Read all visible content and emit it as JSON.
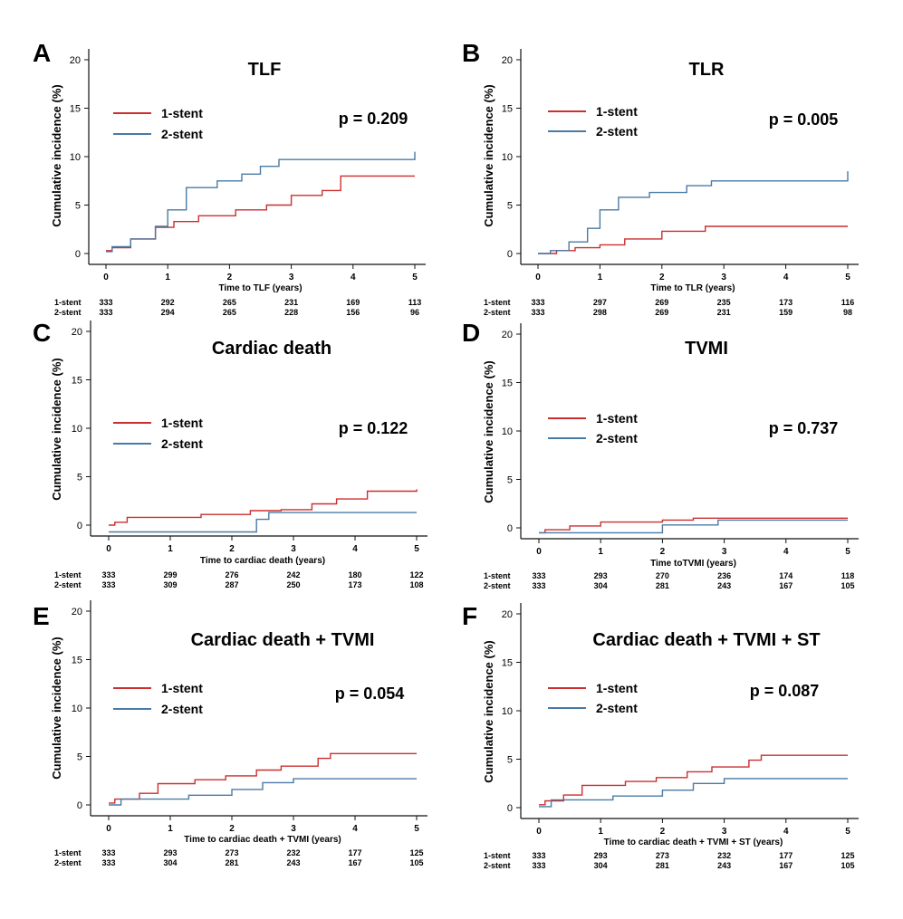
{
  "colors": {
    "one_stent": "#cc2f2f",
    "two_stent": "#4a7aa6",
    "axis": "#111111"
  },
  "chart_data": [
    {
      "type": "line",
      "panel": "A",
      "title": "TLF",
      "p_value": "p = 0.209",
      "xlabel": "Time to TLF (years)",
      "ylabel": "Cumulative incidence (%)",
      "xlim": [
        0,
        5
      ],
      "ylim": [
        0,
        20
      ],
      "xticks": [
        0,
        1,
        2,
        3,
        4,
        5
      ],
      "yticks": [
        0,
        5,
        10,
        15,
        20
      ],
      "legend": [
        "1-stent",
        "2-stent"
      ],
      "series": [
        {
          "name": "1-stent",
          "x": [
            0,
            0.1,
            0.4,
            0.8,
            1.1,
            1.5,
            2.1,
            2.6,
            3.0,
            3.5,
            3.8,
            5.0
          ],
          "y": [
            0.3,
            0.6,
            1.5,
            2.7,
            3.3,
            3.9,
            4.5,
            5.0,
            6.0,
            6.5,
            8.0,
            8.0
          ]
        },
        {
          "name": "2-stent",
          "x": [
            0,
            0.1,
            0.4,
            0.8,
            1.0,
            1.3,
            1.8,
            2.2,
            2.5,
            2.8,
            5.0,
            5.0
          ],
          "y": [
            0.2,
            0.7,
            1.5,
            2.8,
            4.5,
            6.8,
            7.5,
            8.2,
            9.0,
            9.7,
            9.7,
            10.5
          ]
        }
      ],
      "at_risk": {
        "1-stent": [
          "333",
          "292",
          "265",
          "231",
          "169",
          "113"
        ],
        "2-stent": [
          "333",
          "294",
          "265",
          "228",
          "156",
          "96"
        ]
      }
    },
    {
      "type": "line",
      "panel": "B",
      "title": "TLR",
      "p_value": "p = 0.005",
      "xlabel": "Time to TLR (years)",
      "ylabel": "Cumulative incidence (%)",
      "xlim": [
        0,
        5
      ],
      "ylim": [
        0,
        20
      ],
      "xticks": [
        0,
        1,
        2,
        3,
        4,
        5
      ],
      "yticks": [
        0,
        5,
        10,
        15,
        20
      ],
      "legend": [
        "1-stent",
        "2-stent"
      ],
      "series": [
        {
          "name": "1-stent",
          "x": [
            0,
            0.3,
            0.6,
            1.0,
            1.4,
            2.0,
            2.7,
            5.0
          ],
          "y": [
            0,
            0.3,
            0.6,
            0.9,
            1.5,
            2.3,
            2.8,
            2.8
          ]
        },
        {
          "name": "2-stent",
          "x": [
            0,
            0.2,
            0.5,
            0.8,
            1.0,
            1.3,
            1.8,
            2.4,
            2.8,
            5.0,
            5.0
          ],
          "y": [
            0,
            0.3,
            1.2,
            2.6,
            4.5,
            5.8,
            6.3,
            7.0,
            7.5,
            7.5,
            8.5
          ]
        }
      ],
      "at_risk": {
        "1-stent": [
          "333",
          "297",
          "269",
          "235",
          "173",
          "116"
        ],
        "2-stent": [
          "333",
          "298",
          "269",
          "231",
          "159",
          "98"
        ]
      }
    },
    {
      "type": "line",
      "panel": "C",
      "title": "Cardiac death",
      "p_value": "p = 0.122",
      "xlabel": "Time to cardiac death (years)",
      "ylabel": "Cumulative incidence (%)",
      "xlim": [
        0,
        5
      ],
      "ylim": [
        0,
        20
      ],
      "xticks": [
        0,
        1,
        2,
        3,
        4,
        5
      ],
      "yticks": [
        0,
        5,
        10,
        15,
        20
      ],
      "legend": [
        "1-stent",
        "2-stent"
      ],
      "series": [
        {
          "name": "1-stent",
          "x": [
            0,
            0.1,
            0.3,
            1.0,
            1.5,
            2.3,
            2.8,
            3.3,
            3.7,
            4.2,
            5.0
          ],
          "y": [
            0,
            0.3,
            0.8,
            0.8,
            1.1,
            1.5,
            1.6,
            2.2,
            2.7,
            3.5,
            3.7
          ]
        },
        {
          "name": "2-stent",
          "x": [
            0,
            1.3,
            2.4,
            2.6,
            5.0
          ],
          "y": [
            -0.7,
            -0.7,
            0.6,
            1.3,
            1.3
          ]
        }
      ],
      "at_risk": {
        "1-stent": [
          "333",
          "299",
          "276",
          "242",
          "180",
          "122"
        ],
        "2-stent": [
          "333",
          "309",
          "287",
          "250",
          "173",
          "108"
        ]
      }
    },
    {
      "type": "line",
      "panel": "D",
      "title": "TVMI",
      "p_value": "p = 0.737",
      "xlabel": "Time toTVMI (years)",
      "ylabel": "Cumulative incidence (%)",
      "xlim": [
        0,
        5
      ],
      "ylim": [
        0,
        20
      ],
      "xticks": [
        0,
        1,
        2,
        3,
        4,
        5
      ],
      "yticks": [
        0,
        5,
        10,
        15,
        20
      ],
      "legend": [
        "1-stent",
        "2-stent"
      ],
      "series": [
        {
          "name": "1-stent",
          "x": [
            0,
            0.1,
            0.5,
            1.0,
            2.0,
            2.5,
            5.0
          ],
          "y": [
            -0.5,
            -0.2,
            0.2,
            0.6,
            0.8,
            1.0,
            1.0
          ]
        },
        {
          "name": "2-stent",
          "x": [
            0,
            1.5,
            2.0,
            2.9,
            5.0
          ],
          "y": [
            -0.5,
            -0.5,
            0.3,
            0.8,
            0.8
          ]
        }
      ],
      "at_risk": {
        "1-stent": [
          "333",
          "293",
          "270",
          "236",
          "174",
          "118"
        ],
        "2-stent": [
          "333",
          "304",
          "281",
          "243",
          "167",
          "105"
        ]
      }
    },
    {
      "type": "line",
      "panel": "E",
      "title": "Cardiac death + TVMI",
      "p_value": "p = 0.054",
      "xlabel": "Time to cardiac death + TVMI (years)",
      "ylabel": "Cumulative incidence (%)",
      "xlim": [
        0,
        5
      ],
      "ylim": [
        0,
        20
      ],
      "xticks": [
        0,
        1,
        2,
        3,
        4,
        5
      ],
      "yticks": [
        0,
        5,
        10,
        15,
        20
      ],
      "legend": [
        "1-stent",
        "2-stent"
      ],
      "series": [
        {
          "name": "1-stent",
          "x": [
            0,
            0.1,
            0.5,
            0.8,
            1.4,
            1.9,
            2.4,
            2.8,
            3.4,
            3.6,
            5.0
          ],
          "y": [
            0.2,
            0.6,
            1.2,
            2.2,
            2.6,
            3.0,
            3.6,
            4.0,
            4.8,
            5.3,
            5.3
          ]
        },
        {
          "name": "2-stent",
          "x": [
            0,
            0.2,
            1.3,
            2.0,
            2.5,
            3.0,
            5.0
          ],
          "y": [
            0,
            0.6,
            1.0,
            1.6,
            2.3,
            2.7,
            2.7
          ]
        }
      ],
      "at_risk": {
        "1-stent": [
          "333",
          "293",
          "273",
          "232",
          "177",
          "125"
        ],
        "2-stent": [
          "333",
          "304",
          "281",
          "243",
          "167",
          "105"
        ]
      }
    },
    {
      "type": "line",
      "panel": "F",
      "title": "Cardiac death + TVMI + ST",
      "p_value": "p = 0.087",
      "xlabel": "Time to cardiac death + TVMI + ST (years)",
      "ylabel": "Cumulative incidence (%)",
      "xlim": [
        0,
        5
      ],
      "ylim": [
        0,
        20
      ],
      "xticks": [
        0,
        1,
        2,
        3,
        4,
        5
      ],
      "yticks": [
        0,
        5,
        10,
        15,
        20
      ],
      "legend": [
        "1-stent",
        "2-stent"
      ],
      "series": [
        {
          "name": "1-stent",
          "x": [
            0,
            0.1,
            0.4,
            0.7,
            1.4,
            1.9,
            2.4,
            2.8,
            3.4,
            3.6,
            5.0
          ],
          "y": [
            0.3,
            0.7,
            1.3,
            2.3,
            2.7,
            3.1,
            3.7,
            4.2,
            4.9,
            5.4,
            5.4
          ]
        },
        {
          "name": "2-stent",
          "x": [
            0,
            0.2,
            1.2,
            2.0,
            2.5,
            3.0,
            5.0
          ],
          "y": [
            0.1,
            0.8,
            1.2,
            1.8,
            2.5,
            3.0,
            3.0
          ]
        }
      ],
      "at_risk": {
        "1-stent": [
          "333",
          "293",
          "273",
          "232",
          "177",
          "125"
        ],
        "2-stent": [
          "333",
          "304",
          "281",
          "243",
          "167",
          "105"
        ]
      }
    }
  ]
}
